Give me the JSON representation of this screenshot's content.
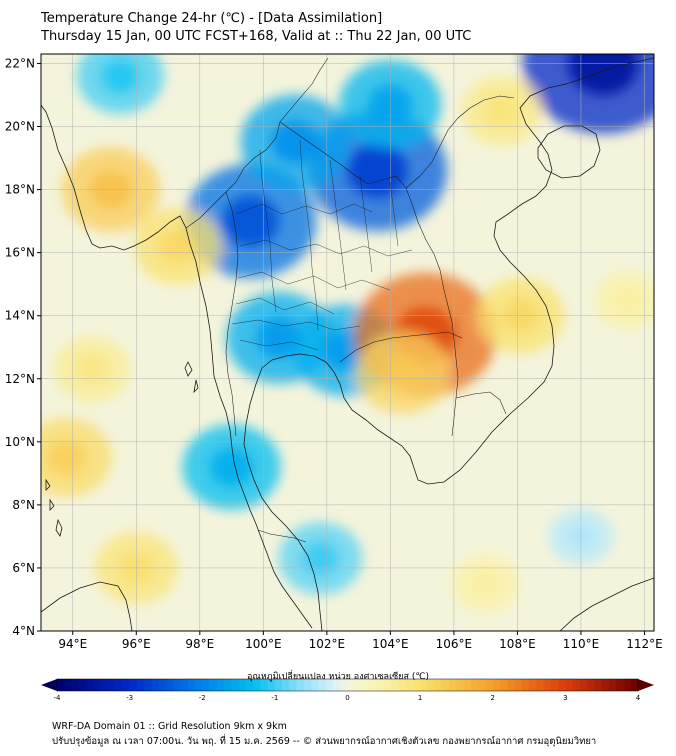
{
  "header": {
    "title_line1": "Temperature Change 24-hr (℃) - [Data Assimilation]",
    "title_line2": "Thursday 15 Jan, 00 UTC FCST+168, Valid at :: Thu 22 Jan, 00 UTC"
  },
  "map": {
    "lat_labels": [
      "22°N",
      "20°N",
      "18°N",
      "16°N",
      "14°N",
      "12°N",
      "10°N",
      "8°N",
      "6°N",
      "4°N"
    ],
    "lon_labels": [
      "94°E",
      "96°E",
      "98°E",
      "100°E",
      "102°E",
      "104°E",
      "106°E",
      "108°E",
      "110°E",
      "112°E"
    ],
    "extent": {
      "lon_min": 93,
      "lon_max": 112.3,
      "lat_min": 4,
      "lat_max": 22.3
    },
    "anomalies": [
      {
        "lon": 99.6,
        "lat": 17.0,
        "value": -2.2
      },
      {
        "lon": 103.6,
        "lat": 18.6,
        "value": -2.4
      },
      {
        "lon": 101.0,
        "lat": 19.5,
        "value": -1.6
      },
      {
        "lon": 104.0,
        "lat": 20.7,
        "value": -1.4
      },
      {
        "lon": 100.5,
        "lat": 13.3,
        "value": -1.5
      },
      {
        "lon": 102.6,
        "lat": 12.9,
        "value": -1.5
      },
      {
        "lon": 99.0,
        "lat": 9.2,
        "value": -1.3
      },
      {
        "lon": 110.7,
        "lat": 22.0,
        "value": -3.0
      },
      {
        "lon": 95.5,
        "lat": 21.6,
        "value": -1.0
      },
      {
        "lon": 105.1,
        "lat": 13.4,
        "value": 2.5
      },
      {
        "lon": 104.4,
        "lat": 12.2,
        "value": 1.2
      },
      {
        "lon": 95.2,
        "lat": 18.0,
        "value": 1.3
      },
      {
        "lon": 97.3,
        "lat": 16.2,
        "value": 1.0
      },
      {
        "lon": 108.1,
        "lat": 14.0,
        "value": 1.0
      },
      {
        "lon": 93.8,
        "lat": 9.5,
        "value": 1.1
      },
      {
        "lon": 96.0,
        "lat": 6.0,
        "value": 0.9
      },
      {
        "lon": 94.6,
        "lat": 12.3,
        "value": 0.7
      },
      {
        "lon": 107.5,
        "lat": 20.5,
        "value": 0.8
      },
      {
        "lon": 111.5,
        "lat": 14.5,
        "value": 0.5
      },
      {
        "lon": 101.8,
        "lat": 6.3,
        "value": -0.9
      },
      {
        "lon": 107.0,
        "lat": 5.5,
        "value": 0.5
      },
      {
        "lon": 110.0,
        "lat": 7.0,
        "value": -0.4
      }
    ]
  },
  "colorbar": {
    "label": "อุณหภูมิเปลี่ยนแปลง หน่วย องศาเซลเซียส (℃)",
    "ticks": [
      "-4",
      "-3",
      "-2",
      "-1",
      "0",
      "1",
      "2",
      "3",
      "4"
    ],
    "min": -4,
    "max": 4
  },
  "footer": {
    "line1": "WRF-DA Domain 01 :: Grid Resolution 9km x 9km",
    "line2": "ปรับปรุงข้อมูล ณ เวลา 07:00น. วัน พฤ. ที่ 15 ม.ค. 2569 -- © ส่วนพยากรณ์อากาศเชิงตัวเลข กองพยากรณ์อากาศ กรมอุตุนิยมวิทยา"
  },
  "colors": {
    "ocean_neutral": "#f4f4dc",
    "border": "#1a1a1a"
  }
}
